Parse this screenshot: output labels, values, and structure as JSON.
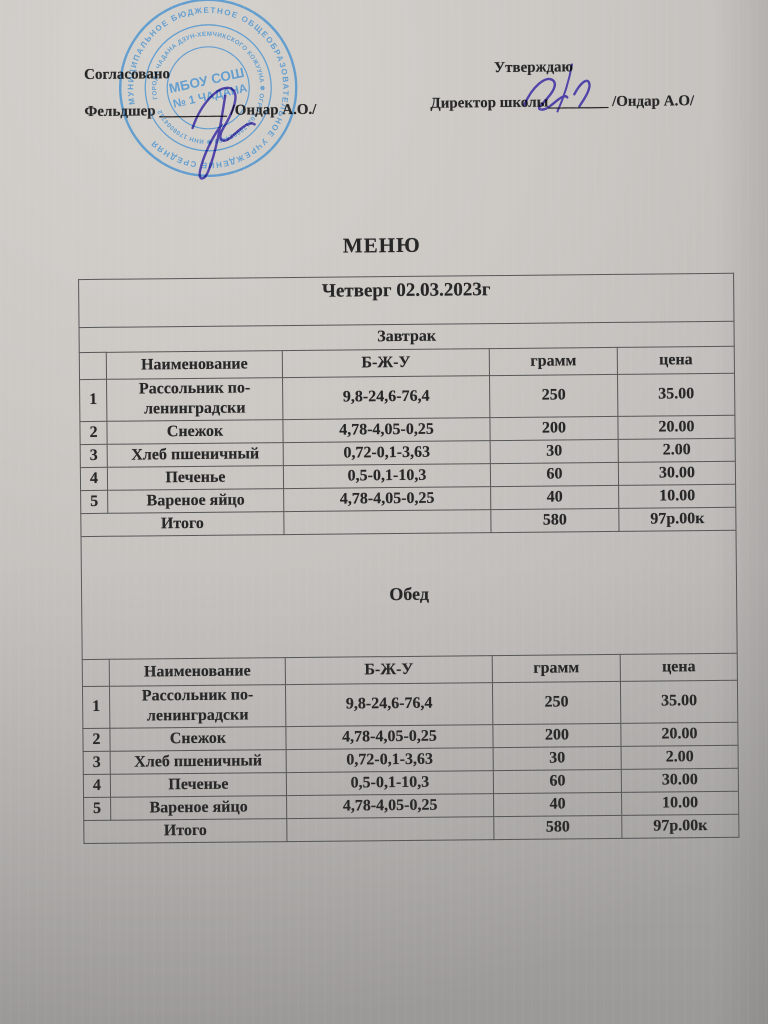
{
  "approval": {
    "left_title": "Согласовано",
    "left_role": "Фельдшер",
    "left_line": "_________",
    "left_name": "/Ондар А.О./",
    "right_title": "Утверждаю",
    "right_role": "Директор школы",
    "right_line": "________",
    "right_name": "/Ондар А.О/"
  },
  "stamp": {
    "ring_outer": "МУНИЦИПАЛЬНОЕ БЮДЖЕТНОЕ ОБЩЕОБРАЗОВАТЕЛЬНОЕ УЧРЕЖДЕНИЕ СРЕДНЯЯ",
    "ring_inner": "ГОРОДА ЧАДАНА ДЗУН-ХЕМЧИКСКОГО КОЖУУНА ✱ ОГРН 1021700624450 ✱ ИНН 1708004712",
    "center_line1": "МБОУ СОШ",
    "center_line2": "№ 1 ЧАДАНА",
    "ink_color": "#4a92cf"
  },
  "menu": {
    "title": "МЕНЮ",
    "day": "Четверг 02.03.2023г",
    "columns": [
      "",
      "Наименование",
      "Б-Ж-У",
      "грамм",
      "цена"
    ],
    "sections": [
      {
        "name": "Завтрак",
        "items": [
          {
            "n": "1",
            "name": "Рассольник по-ленинградски",
            "bju": "9,8-24,6-76,4",
            "gram": "250",
            "price": "35.00"
          },
          {
            "n": "2",
            "name": "Снежок",
            "bju": "4,78-4,05-0,25",
            "gram": "200",
            "price": "20.00"
          },
          {
            "n": "3",
            "name": "Хлеб пшеничный",
            "bju": "0,72-0,1-3,63",
            "gram": "30",
            "price": "2.00"
          },
          {
            "n": "4",
            "name": "Печенье",
            "bju": "0,5-0,1-10,3",
            "gram": "60",
            "price": "30.00"
          },
          {
            "n": "5",
            "name": "Вареное яйцо",
            "bju": "4,78-4,05-0,25",
            "gram": "40",
            "price": "10.00"
          }
        ],
        "total": {
          "label": "Итого",
          "gram": "580",
          "price": "97р.00к"
        }
      },
      {
        "name": "Обед",
        "items": [
          {
            "n": "1",
            "name": "Рассольник по-ленинградски",
            "bju": "9,8-24,6-76,4",
            "gram": "250",
            "price": "35.00"
          },
          {
            "n": "2",
            "name": "Снежок",
            "bju": "4,78-4,05-0,25",
            "gram": "200",
            "price": "20.00"
          },
          {
            "n": "3",
            "name": "Хлеб пшеничный",
            "bju": "0,72-0,1-3,63",
            "gram": "30",
            "price": "2.00"
          },
          {
            "n": "4",
            "name": "Печенье",
            "bju": "0,5-0,1-10,3",
            "gram": "60",
            "price": "30.00"
          },
          {
            "n": "5",
            "name": "Вареное яйцо",
            "bju": "4,78-4,05-0,25",
            "gram": "40",
            "price": "10.00"
          }
        ],
        "total": {
          "label": "Итого",
          "gram": "580",
          "price": "97р.00к"
        }
      }
    ]
  }
}
